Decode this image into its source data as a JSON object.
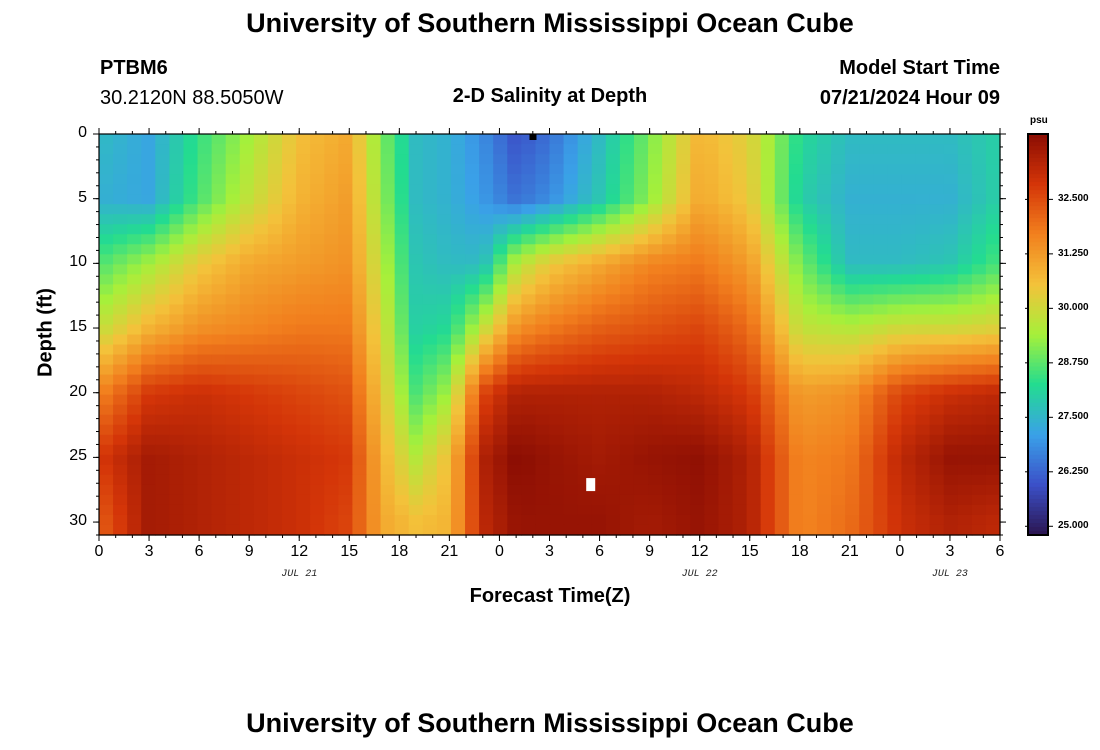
{
  "header": {
    "title": "University of Southern Mississippi Ocean Cube",
    "station": "PTBM6",
    "coords": "30.2120N  88.5050W",
    "plot_title": "2-D Salinity at Depth",
    "model_label": "Model Start Time",
    "model_time": "07/21/2024 Hour 09"
  },
  "footer": {
    "title": "University of Southern Mississippi Ocean Cube"
  },
  "colors": [
    "#2b1550",
    "#3b50c8",
    "#3aa1e8",
    "#23dc90",
    "#a6f03a",
    "#f3c23a",
    "#f2801e",
    "#d43508",
    "#8a0d03"
  ],
  "chart_data": {
    "type": "heatmap",
    "title": "2-D Salinity at Depth",
    "xlabel": "Forecast Time(Z)",
    "ylabel": "Depth (ft)",
    "x_tick_labels": [
      "0",
      "3",
      "6",
      "9",
      "12",
      "15",
      "18",
      "21",
      "0",
      "3",
      "6",
      "9",
      "12",
      "15",
      "18",
      "21",
      "0",
      "3",
      "6"
    ],
    "x_range_hours": [
      0,
      54
    ],
    "y_ticks": [
      0,
      5,
      10,
      15,
      20,
      25,
      30
    ],
    "y_tick_labels": [
      "0",
      "5",
      "10",
      "15",
      "20",
      "25",
      "30"
    ],
    "ylim": [
      0,
      31
    ],
    "y_inverted": true,
    "date_labels": [
      {
        "label": "JUL 21",
        "hour": 12
      },
      {
        "label": "JUL 22",
        "hour": 36
      },
      {
        "label": "JUL 23",
        "hour": 51
      }
    ],
    "colorbar": {
      "unit": "psu",
      "ticks": [
        "25.000",
        "26.250",
        "27.500",
        "28.750",
        "30.000",
        "31.250",
        "32.500"
      ],
      "tick_values": [
        25.0,
        26.25,
        27.5,
        28.75,
        30.0,
        31.25,
        32.5
      ],
      "range": [
        24.8,
        34.0
      ]
    },
    "salinity_psu": {
      "hours": [
        0,
        3,
        6,
        9,
        12,
        15,
        17,
        19,
        21,
        23,
        25,
        27,
        30,
        33,
        36,
        39,
        42,
        45,
        48,
        51,
        54
      ],
      "depths_ft": [
        0,
        5,
        10,
        15,
        20,
        25,
        30
      ],
      "values": [
        [
          27.6,
          27.2,
          28.4,
          29.4,
          30.6,
          31.0,
          29.0,
          27.6,
          27.4,
          26.8,
          26.0,
          26.4,
          27.6,
          29.0,
          30.8,
          30.2,
          28.2,
          27.6,
          27.6,
          27.6,
          28.0
        ],
        [
          27.4,
          27.2,
          28.6,
          29.8,
          30.8,
          31.2,
          29.2,
          27.6,
          27.4,
          27.0,
          26.4,
          26.8,
          27.8,
          29.2,
          31.0,
          30.4,
          28.0,
          27.4,
          27.4,
          27.4,
          28.0
        ],
        [
          28.6,
          29.4,
          30.4,
          31.0,
          31.2,
          31.4,
          29.6,
          27.8,
          27.6,
          27.6,
          29.6,
          30.4,
          31.0,
          31.6,
          31.8,
          31.2,
          29.0,
          27.6,
          27.6,
          27.8,
          28.6
        ],
        [
          29.8,
          30.8,
          31.4,
          31.6,
          31.8,
          31.8,
          30.0,
          28.0,
          28.2,
          29.8,
          31.4,
          31.8,
          32.2,
          32.4,
          32.6,
          32.0,
          29.8,
          29.6,
          30.0,
          30.0,
          30.2
        ],
        [
          31.6,
          32.8,
          33.0,
          32.8,
          32.6,
          32.4,
          30.4,
          28.6,
          29.4,
          32.6,
          33.4,
          33.4,
          33.4,
          33.4,
          33.2,
          32.8,
          31.2,
          31.4,
          32.6,
          33.0,
          33.2
        ],
        [
          32.8,
          33.6,
          33.4,
          33.2,
          33.0,
          32.8,
          30.8,
          29.6,
          30.6,
          33.4,
          34.0,
          33.8,
          33.6,
          33.8,
          33.9,
          33.4,
          31.6,
          31.8,
          33.2,
          33.8,
          33.8
        ],
        [
          32.2,
          33.6,
          33.4,
          33.2,
          33.0,
          32.6,
          31.0,
          30.6,
          30.8,
          33.2,
          33.8,
          33.8,
          33.8,
          33.6,
          33.8,
          33.4,
          31.6,
          32.0,
          33.0,
          33.4,
          33.2
        ]
      ]
    }
  }
}
